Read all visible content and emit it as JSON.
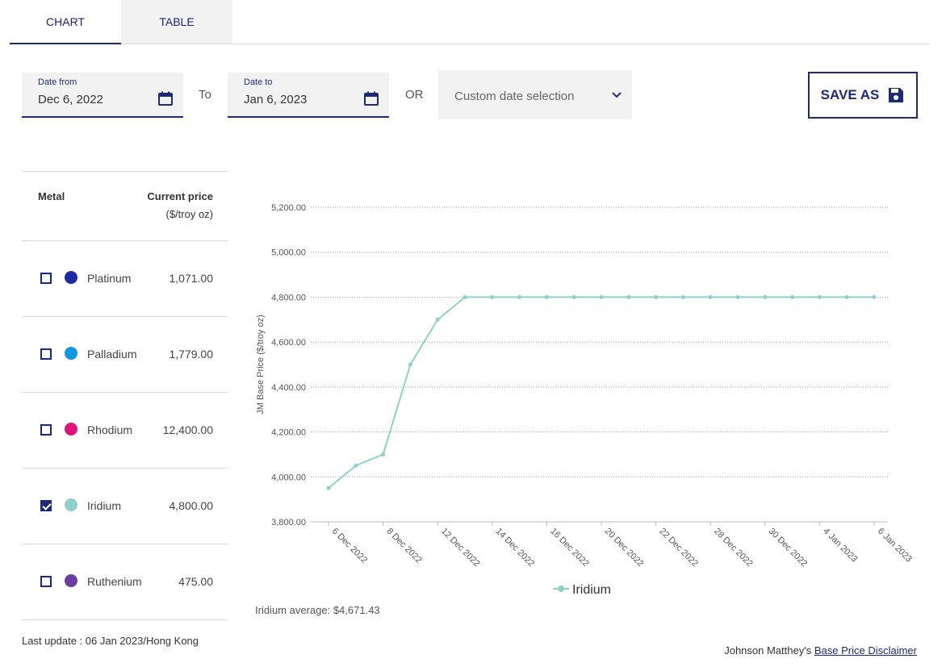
{
  "tabs": [
    {
      "label": "CHART",
      "active": true
    },
    {
      "label": "TABLE",
      "active": false
    }
  ],
  "filters": {
    "date_from_label": "Date from",
    "date_from_value": "Dec 6, 2022",
    "to_text": "To",
    "date_to_label": "Date to",
    "date_to_value": "Jan 6, 2023",
    "or_text": "OR",
    "custom_selection": "Custom date selection",
    "save_label": "SAVE AS"
  },
  "metal_table": {
    "header_metal": "Metal",
    "header_price": "Current price",
    "header_unit": "($/troy oz)",
    "rows": [
      {
        "name": "Platinum",
        "price": "1,071.00",
        "color": "#1e2aa0",
        "checked": false
      },
      {
        "name": "Palladium",
        "price": "1,779.00",
        "color": "#1296e0",
        "checked": false
      },
      {
        "name": "Rhodium",
        "price": "12,400.00",
        "color": "#e0157a",
        "checked": false
      },
      {
        "name": "Iridium",
        "price": "4,800.00",
        "color": "#8fd1c8",
        "checked": true
      },
      {
        "name": "Ruthenium",
        "price": "475.00",
        "color": "#6b3fa0",
        "checked": false
      }
    ]
  },
  "last_update": "Last update : 06 Jan 2023/Hong Kong",
  "average_text": "Iridium average: $4,671.43",
  "disclaimer_prefix": "Johnson Matthey's",
  "disclaimer_link": "Base Price Disclaimer",
  "chart_data": {
    "type": "line",
    "ylabel": "JM Base Price ($/troy oz)",
    "ylim": [
      3800,
      5200
    ],
    "yticks": [
      "3,800.00",
      "4,000.00",
      "4,200.00",
      "4,400.00",
      "4,600.00",
      "4,800.00",
      "5,000.00",
      "5,200.00"
    ],
    "ytick_values": [
      3800,
      4000,
      4200,
      4400,
      4600,
      4800,
      5000,
      5200
    ],
    "xtick_labels": [
      "6 Dec 2022",
      "8 Dec 2022",
      "12 Dec 2022",
      "14 Dec 2022",
      "16 Dec 2022",
      "20 Dec 2022",
      "22 Dec 2022",
      "28 Dec 2022",
      "30 Dec 2022",
      "4 Jan 2023",
      "6 Jan 2023"
    ],
    "grid": true,
    "legend": "bottom-center",
    "series": [
      {
        "name": "Iridium",
        "color": "#8fd1c8",
        "values": [
          3950,
          4050,
          4100,
          4500,
          4700,
          4800,
          4800,
          4800,
          4800,
          4800,
          4800,
          4800,
          4800,
          4800,
          4800,
          4800,
          4800,
          4800,
          4800,
          4800,
          4800
        ]
      }
    ]
  }
}
